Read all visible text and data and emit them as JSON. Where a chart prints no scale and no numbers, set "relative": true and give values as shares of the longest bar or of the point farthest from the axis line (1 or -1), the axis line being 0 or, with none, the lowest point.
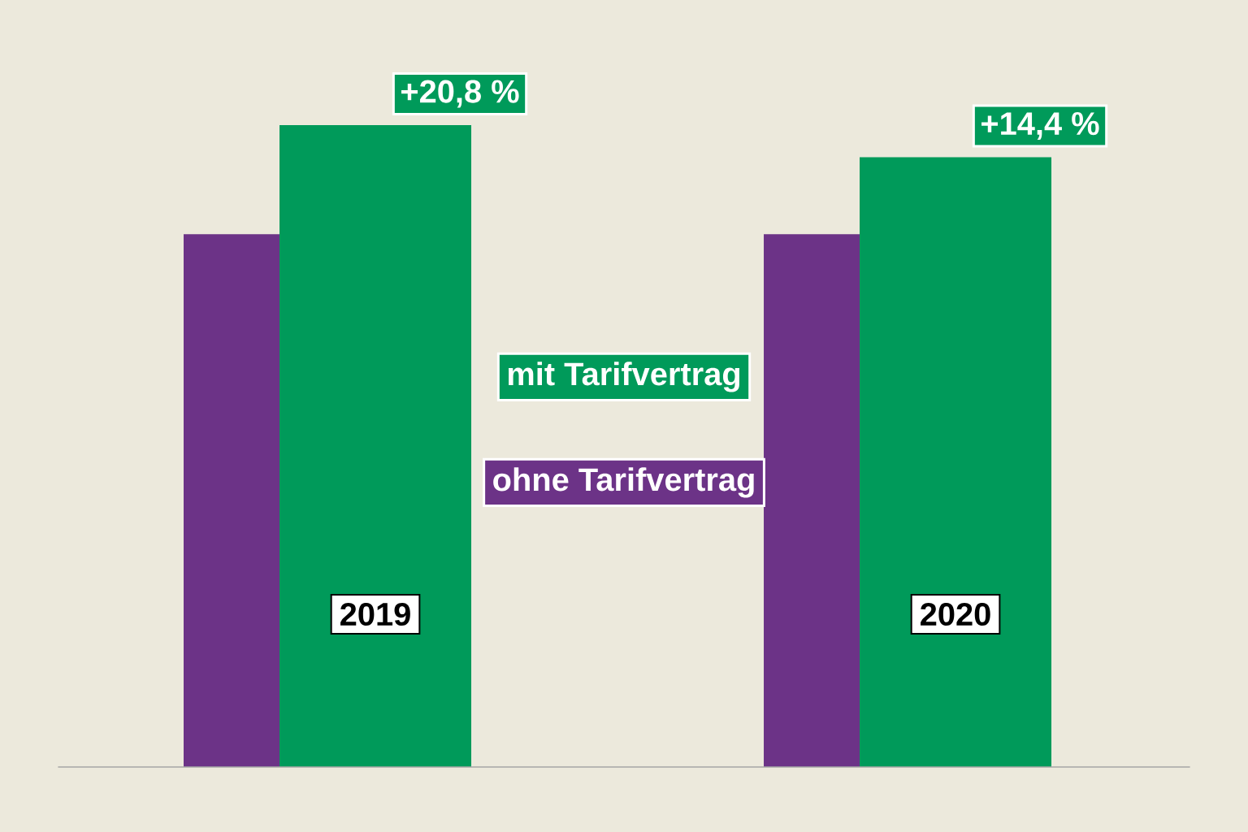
{
  "chart_data": {
    "type": "bar",
    "relative": true,
    "categories": [
      "2019",
      "2020"
    ],
    "series": [
      {
        "name": "ohne Tarifvertrag",
        "color": "#6c3387",
        "values": [
          0.83,
          0.83
        ]
      },
      {
        "name": "mit Tarifvertrag",
        "color": "#009a5a",
        "values": [
          1,
          0.95
        ]
      }
    ],
    "annotations": [
      {
        "text": "+20,8 %",
        "x": "2019",
        "y": 1
      },
      {
        "text": "+14,4 %",
        "x": "2020",
        "y": 0.95
      }
    ],
    "legend": "center"
  }
}
